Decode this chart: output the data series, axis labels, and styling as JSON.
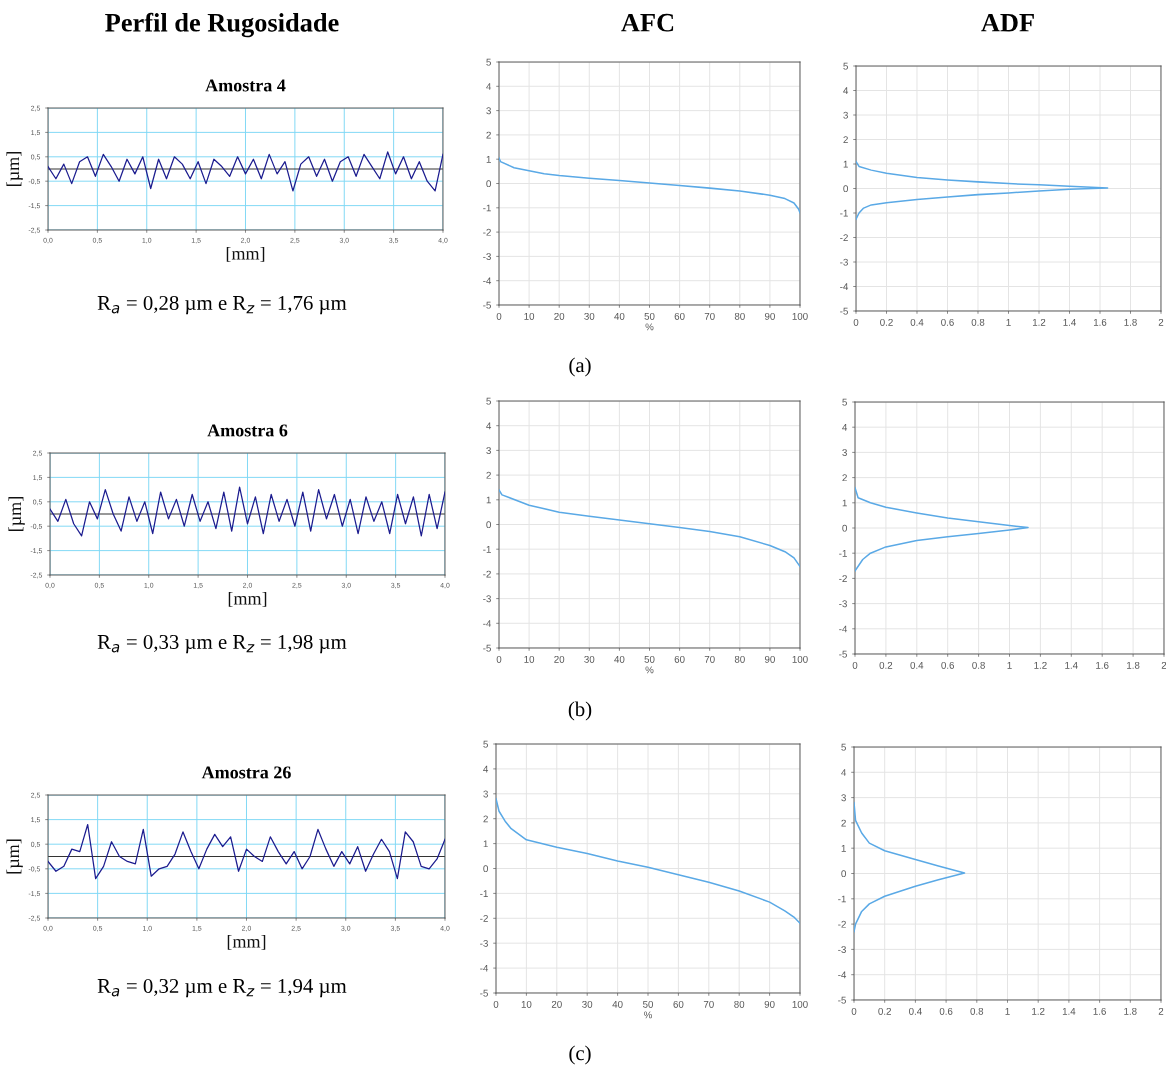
{
  "chart_data": [
    {
      "type": "line",
      "title": "Perfil de Rugosidade",
      "subtitle": "Amostra 4",
      "xlabel": "[mm]",
      "ylabel": "[µm]",
      "annotations": [
        "R$_{a}$ = 0,28 µm e R$_{z}$ = 1,76 µm"
      ],
      "grid": true,
      "xlim": [
        0,
        4
      ],
      "ylim": [
        -2.5,
        2.5
      ],
      "xticks": [
        {
          "value": 0,
          "label": "0,0"
        },
        {
          "value": 0.5,
          "label": "0,5"
        },
        {
          "value": 1,
          "label": "1,0"
        },
        {
          "value": 1.5,
          "label": "1,5"
        },
        {
          "value": 2,
          "label": "2,0"
        },
        {
          "value": 2.5,
          "label": "2,5"
        },
        {
          "value": 3,
          "label": "3,0"
        },
        {
          "value": 3.5,
          "label": "3,5"
        },
        {
          "value": 4,
          "label": "4,0"
        }
      ],
      "yticks": [
        {
          "value": -2.5,
          "label": "-2,5"
        },
        {
          "value": -1.5,
          "label": "-1,5"
        },
        {
          "value": -0.5,
          "label": "-0,5"
        },
        {
          "value": 0.5,
          "label": "0,5"
        },
        {
          "value": 1.5,
          "label": "1,5"
        },
        {
          "value": 2.5,
          "label": "2,5"
        }
      ],
      "ref_lines": [
        {
          "axis": "y",
          "value": 0,
          "color": "#333333"
        }
      ],
      "series": [
        {
          "color": "#1c1c8f",
          "x": [
            0,
            0.08,
            0.16,
            0.24,
            0.32,
            0.4,
            0.48,
            0.56,
            0.64,
            0.72,
            0.8,
            0.88,
            0.96,
            1.04,
            1.12,
            1.2,
            1.28,
            1.36,
            1.44,
            1.52,
            1.6,
            1.68,
            1.76,
            1.84,
            1.92,
            2.0,
            2.08,
            2.16,
            2.24,
            2.32,
            2.4,
            2.48,
            2.56,
            2.64,
            2.72,
            2.8,
            2.88,
            2.96,
            3.04,
            3.12,
            3.2,
            3.28,
            3.36,
            3.44,
            3.52,
            3.6,
            3.68,
            3.76,
            3.84,
            3.92,
            4.0
          ],
          "values": [
            0.1,
            -0.4,
            0.2,
            -0.6,
            0.3,
            0.5,
            -0.3,
            0.6,
            0.1,
            -0.5,
            0.4,
            -0.2,
            0.5,
            -0.8,
            0.4,
            -0.4,
            0.5,
            0.2,
            -0.4,
            0.3,
            -0.6,
            0.4,
            0.1,
            -0.3,
            0.5,
            -0.2,
            0.4,
            -0.4,
            0.6,
            -0.2,
            0.3,
            -0.9,
            0.2,
            0.5,
            -0.3,
            0.4,
            -0.5,
            0.3,
            0.5,
            -0.3,
            0.6,
            0.1,
            -0.4,
            0.7,
            -0.2,
            0.5,
            -0.4,
            0.3,
            -0.5,
            -0.9,
            0.6
          ]
        }
      ]
    },
    {
      "type": "line",
      "title": "AFC",
      "xlabel": "%",
      "annotations": [
        "(a)"
      ],
      "grid": true,
      "xlim": [
        0,
        100
      ],
      "ylim": [
        -5,
        5
      ],
      "xticks": [
        0,
        10,
        20,
        30,
        40,
        50,
        60,
        70,
        80,
        90,
        100
      ],
      "yticks": [
        -5,
        -4,
        -3,
        -2,
        -1,
        0,
        1,
        2,
        3,
        4,
        5
      ],
      "series": [
        {
          "color": "#5aa9e6",
          "x": [
            0,
            0.5,
            5,
            10,
            15,
            20,
            30,
            40,
            50,
            60,
            70,
            80,
            90,
            95,
            98,
            99.5,
            100
          ],
          "values": [
            1.05,
            0.9,
            0.65,
            0.52,
            0.4,
            0.33,
            0.22,
            0.12,
            0.02,
            -0.08,
            -0.19,
            -0.31,
            -0.48,
            -0.62,
            -0.8,
            -1.05,
            -1.2
          ]
        }
      ]
    },
    {
      "type": "line",
      "title": "ADF",
      "grid": true,
      "xlim": [
        0,
        2
      ],
      "ylim": [
        -5,
        5
      ],
      "xticks": [
        0,
        0.2,
        0.4,
        0.6,
        0.8,
        1,
        1.2,
        1.4,
        1.6,
        1.8,
        2
      ],
      "yticks": [
        -5,
        -4,
        -3,
        -2,
        -1,
        0,
        1,
        2,
        3,
        4,
        5
      ],
      "series": [
        {
          "color": "#5aa9e6",
          "x": [
            0,
            0.02,
            0.1,
            0.2,
            0.4,
            0.6,
            0.8,
            1.0,
            1.2,
            1.4,
            1.65,
            1.4,
            1.2,
            1.0,
            0.8,
            0.6,
            0.4,
            0.2,
            0.1,
            0.05,
            0.02,
            0
          ],
          "values": [
            1.1,
            0.9,
            0.75,
            0.62,
            0.45,
            0.35,
            0.27,
            0.2,
            0.15,
            0.09,
            0.02,
            -0.03,
            -0.1,
            -0.18,
            -0.25,
            -0.35,
            -0.45,
            -0.58,
            -0.67,
            -0.8,
            -1.0,
            -1.25
          ]
        }
      ]
    },
    {
      "type": "line",
      "subtitle": "Amostra 6",
      "xlabel": "[mm]",
      "ylabel": "[µm]",
      "annotations": [
        "R$_{a}$ = 0,33 µm e R$_{z}$ = 1,98 µm"
      ],
      "grid": true,
      "xlim": [
        0,
        4
      ],
      "ylim": [
        -2.5,
        2.5
      ],
      "xticks": [
        {
          "value": 0,
          "label": "0,0"
        },
        {
          "value": 0.5,
          "label": "0,5"
        },
        {
          "value": 1,
          "label": "1,0"
        },
        {
          "value": 1.5,
          "label": "1,5"
        },
        {
          "value": 2,
          "label": "2,0"
        },
        {
          "value": 2.5,
          "label": "2,5"
        },
        {
          "value": 3,
          "label": "3,0"
        },
        {
          "value": 3.5,
          "label": "3,5"
        },
        {
          "value": 4,
          "label": "4,0"
        }
      ],
      "yticks": [
        {
          "value": -2.5,
          "label": "-2,5"
        },
        {
          "value": -1.5,
          "label": "-1,5"
        },
        {
          "value": -0.5,
          "label": "-0,5"
        },
        {
          "value": 0.5,
          "label": "0,5"
        },
        {
          "value": 1.5,
          "label": "1,5"
        },
        {
          "value": 2.5,
          "label": "2,5"
        }
      ],
      "ref_lines": [
        {
          "axis": "y",
          "value": 0,
          "color": "#333333"
        }
      ],
      "series": [
        {
          "color": "#1c1c8f",
          "x": [
            0,
            0.08,
            0.16,
            0.24,
            0.32,
            0.4,
            0.48,
            0.56,
            0.64,
            0.72,
            0.8,
            0.88,
            0.96,
            1.04,
            1.12,
            1.2,
            1.28,
            1.36,
            1.44,
            1.52,
            1.6,
            1.68,
            1.76,
            1.84,
            1.92,
            2.0,
            2.08,
            2.16,
            2.24,
            2.32,
            2.4,
            2.48,
            2.56,
            2.64,
            2.72,
            2.8,
            2.88,
            2.96,
            3.04,
            3.12,
            3.2,
            3.28,
            3.36,
            3.44,
            3.52,
            3.6,
            3.68,
            3.76,
            3.84,
            3.92,
            4.0
          ],
          "values": [
            0.2,
            -0.3,
            0.6,
            -0.4,
            -0.9,
            0.5,
            -0.2,
            1.0,
            0.0,
            -0.7,
            0.7,
            -0.3,
            0.5,
            -0.8,
            0.9,
            -0.2,
            0.6,
            -0.5,
            0.8,
            -0.3,
            0.5,
            -0.6,
            0.9,
            -0.7,
            1.1,
            -0.4,
            0.7,
            -0.8,
            0.8,
            -0.3,
            0.6,
            -0.5,
            0.9,
            -0.7,
            1.0,
            -0.2,
            0.8,
            -0.5,
            0.6,
            -0.8,
            0.7,
            -0.3,
            0.5,
            -0.8,
            0.8,
            -0.4,
            0.7,
            -0.9,
            0.8,
            -0.6,
            0.9
          ]
        }
      ]
    },
    {
      "type": "line",
      "xlabel": "%",
      "annotations": [
        "(b)"
      ],
      "grid": true,
      "xlim": [
        0,
        100
      ],
      "ylim": [
        -5,
        5
      ],
      "xticks": [
        0,
        10,
        20,
        30,
        40,
        50,
        60,
        70,
        80,
        90,
        100
      ],
      "yticks": [
        -5,
        -4,
        -3,
        -2,
        -1,
        0,
        1,
        2,
        3,
        4,
        5
      ],
      "series": [
        {
          "color": "#5aa9e6",
          "x": [
            0,
            1,
            10,
            20,
            30,
            40,
            50,
            60,
            70,
            80,
            90,
            95,
            98,
            100
          ],
          "values": [
            1.4,
            1.2,
            0.78,
            0.5,
            0.33,
            0.18,
            0.03,
            -0.12,
            -0.28,
            -0.5,
            -0.85,
            -1.1,
            -1.35,
            -1.7
          ]
        }
      ]
    },
    {
      "type": "line",
      "grid": true,
      "xlim": [
        0,
        2
      ],
      "ylim": [
        -5,
        5
      ],
      "xticks": [
        0,
        0.2,
        0.4,
        0.6,
        0.8,
        1,
        1.2,
        1.4,
        1.6,
        1.8,
        2
      ],
      "yticks": [
        -5,
        -4,
        -3,
        -2,
        -1,
        0,
        1,
        2,
        3,
        4,
        5
      ],
      "series": [
        {
          "color": "#5aa9e6",
          "x": [
            0,
            0.02,
            0.1,
            0.2,
            0.4,
            0.6,
            0.8,
            1.0,
            1.12,
            1.0,
            0.8,
            0.6,
            0.4,
            0.2,
            0.1,
            0.05,
            0
          ],
          "values": [
            1.6,
            1.2,
            1.0,
            0.82,
            0.6,
            0.4,
            0.25,
            0.1,
            0.02,
            -0.08,
            -0.22,
            -0.35,
            -0.5,
            -0.75,
            -1.0,
            -1.25,
            -1.7
          ]
        }
      ]
    },
    {
      "type": "line",
      "subtitle": "Amostra 26",
      "xlabel": "[mm]",
      "ylabel": "[µm]",
      "annotations": [
        "R$_{a}$ = 0,32 µm e R$_{z}$ = 1,94 µm"
      ],
      "grid": true,
      "xlim": [
        0,
        4
      ],
      "ylim": [
        -2.5,
        2.5
      ],
      "xticks": [
        {
          "value": 0,
          "label": "0,0"
        },
        {
          "value": 0.5,
          "label": "0,5"
        },
        {
          "value": 1,
          "label": "1,0"
        },
        {
          "value": 1.5,
          "label": "1,5"
        },
        {
          "value": 2,
          "label": "2,0"
        },
        {
          "value": 2.5,
          "label": "2,5"
        },
        {
          "value": 3,
          "label": "3,0"
        },
        {
          "value": 3.5,
          "label": "3,5"
        },
        {
          "value": 4,
          "label": "4,0"
        }
      ],
      "yticks": [
        {
          "value": -2.5,
          "label": "-2,5"
        },
        {
          "value": -1.5,
          "label": "-1,5"
        },
        {
          "value": -0.5,
          "label": "-0,5"
        },
        {
          "value": 0.5,
          "label": "0,5"
        },
        {
          "value": 1.5,
          "label": "1,5"
        },
        {
          "value": 2.5,
          "label": "2,5"
        }
      ],
      "ref_lines": [
        {
          "axis": "y",
          "value": 0,
          "color": "#333333"
        }
      ],
      "series": [
        {
          "color": "#1c1c8f",
          "x": [
            0,
            0.08,
            0.16,
            0.24,
            0.32,
            0.4,
            0.48,
            0.56,
            0.64,
            0.72,
            0.8,
            0.88,
            0.96,
            1.04,
            1.12,
            1.2,
            1.28,
            1.36,
            1.44,
            1.52,
            1.6,
            1.68,
            1.76,
            1.84,
            1.92,
            2.0,
            2.08,
            2.16,
            2.24,
            2.32,
            2.4,
            2.48,
            2.56,
            2.64,
            2.72,
            2.8,
            2.88,
            2.96,
            3.04,
            3.12,
            3.2,
            3.28,
            3.36,
            3.44,
            3.52,
            3.6,
            3.68,
            3.76,
            3.84,
            3.92,
            4.0
          ],
          "values": [
            -0.2,
            -0.6,
            -0.4,
            0.3,
            0.2,
            1.3,
            -0.9,
            -0.4,
            0.6,
            0.0,
            -0.2,
            -0.3,
            1.1,
            -0.8,
            -0.5,
            -0.4,
            0.1,
            1.0,
            0.2,
            -0.5,
            0.3,
            0.9,
            0.4,
            0.8,
            -0.6,
            0.3,
            0.0,
            -0.2,
            0.8,
            0.2,
            -0.3,
            0.2,
            -0.5,
            0.0,
            1.1,
            0.3,
            -0.4,
            0.2,
            -0.3,
            0.4,
            -0.6,
            0.1,
            0.7,
            0.2,
            -0.9,
            1.0,
            0.6,
            -0.4,
            -0.5,
            -0.1,
            0.7
          ]
        }
      ]
    },
    {
      "type": "line",
      "xlabel": "%",
      "annotations": [
        "(c)"
      ],
      "grid": true,
      "xlim": [
        0,
        100
      ],
      "ylim": [
        -5,
        5
      ],
      "xticks": [
        0,
        10,
        20,
        30,
        40,
        50,
        60,
        70,
        80,
        90,
        100
      ],
      "yticks": [
        -5,
        -4,
        -3,
        -2,
        -1,
        0,
        1,
        2,
        3,
        4,
        5
      ],
      "series": [
        {
          "color": "#5aa9e6",
          "x": [
            0,
            1,
            3,
            5,
            10,
            20,
            30,
            40,
            50,
            60,
            70,
            80,
            90,
            95,
            98,
            100
          ],
          "values": [
            2.8,
            2.3,
            1.9,
            1.6,
            1.15,
            0.85,
            0.6,
            0.3,
            0.05,
            -0.25,
            -0.55,
            -0.9,
            -1.35,
            -1.7,
            -1.95,
            -2.2
          ]
        }
      ]
    },
    {
      "type": "line",
      "grid": true,
      "xlim": [
        0,
        2
      ],
      "ylim": [
        -5,
        5
      ],
      "xticks": [
        0,
        0.2,
        0.4,
        0.6,
        0.8,
        1,
        1.2,
        1.4,
        1.6,
        1.8,
        2
      ],
      "yticks": [
        -5,
        -4,
        -3,
        -2,
        -1,
        0,
        1,
        2,
        3,
        4,
        5
      ],
      "series": [
        {
          "color": "#5aa9e6",
          "x": [
            0,
            0.01,
            0.05,
            0.1,
            0.2,
            0.4,
            0.55,
            0.72,
            0.55,
            0.4,
            0.2,
            0.1,
            0.05,
            0.01,
            0
          ],
          "values": [
            2.8,
            2.1,
            1.6,
            1.2,
            0.9,
            0.55,
            0.3,
            0.02,
            -0.25,
            -0.5,
            -0.9,
            -1.2,
            -1.5,
            -2.0,
            -2.3
          ]
        }
      ]
    }
  ]
}
